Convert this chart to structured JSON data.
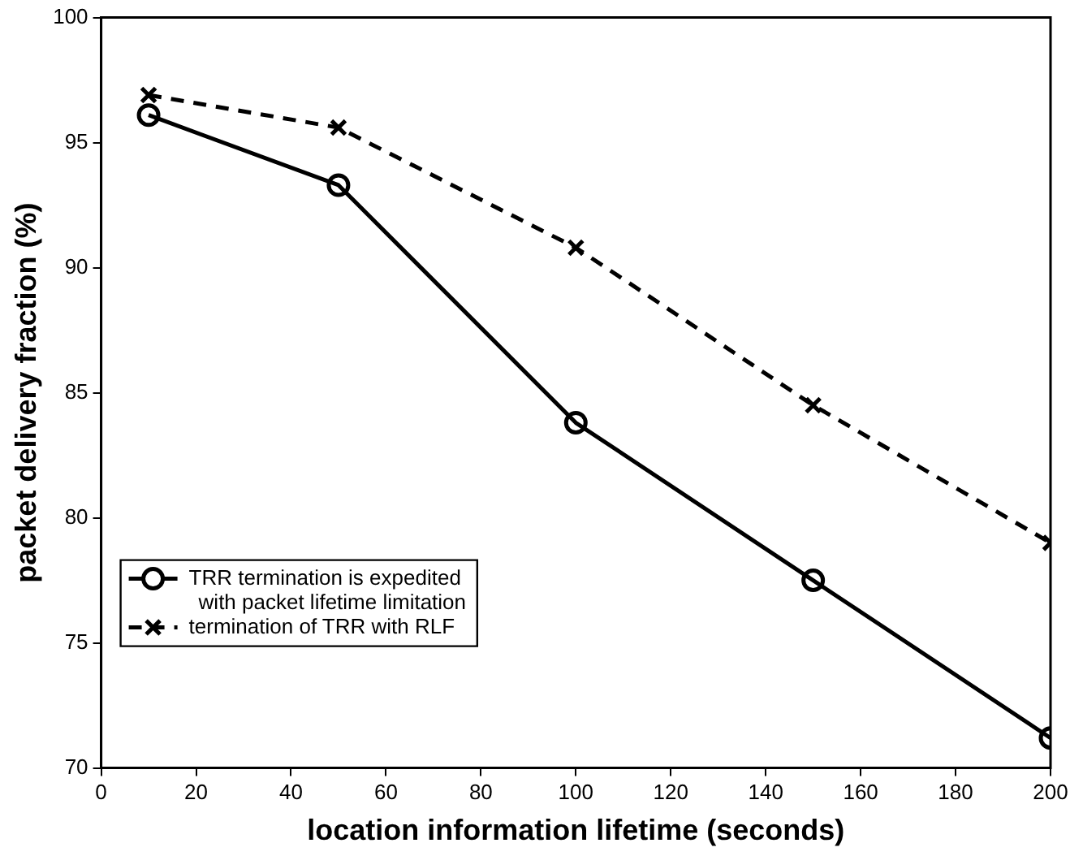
{
  "chart_data": {
    "type": "line",
    "xlabel": "location information lifetime (seconds)",
    "ylabel": "packet delivery fraction (%)",
    "x": [
      10,
      50,
      100,
      150,
      200
    ],
    "series": [
      {
        "name": "TRR termination is expedited with packet lifetime limitation",
        "color": "#000000",
        "marker": "circle",
        "line_style": "solid",
        "values": [
          96.1,
          93.3,
          83.8,
          77.5,
          71.2
        ]
      },
      {
        "name": "termination of TRR with RLF",
        "color": "#000000",
        "marker": "cross",
        "line_style": "dashed",
        "values": [
          96.9,
          95.6,
          90.8,
          84.5,
          79.0
        ]
      }
    ],
    "xlim": [
      0,
      200
    ],
    "xticks": [
      0,
      20,
      40,
      60,
      80,
      100,
      120,
      140,
      160,
      180,
      200
    ],
    "ylim": [
      70,
      100
    ],
    "yticks": [
      70,
      75,
      80,
      85,
      90,
      95,
      100
    ],
    "grid": false,
    "legend": "bottom left"
  }
}
